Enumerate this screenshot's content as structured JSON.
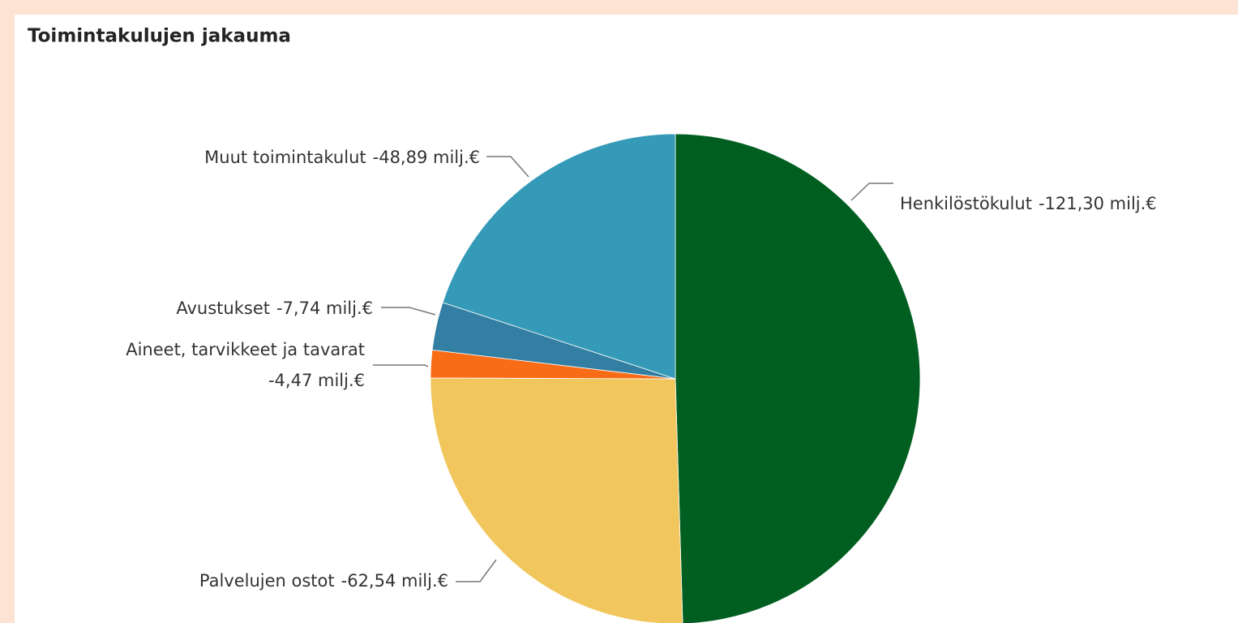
{
  "chart_data": {
    "type": "pie",
    "title": "Toimintakulujen jakauma",
    "categories": [
      "Henkilöstökulut",
      "Palvelujen ostot",
      "Aineet, tarvikkeet ja tavarat",
      "Avustukset",
      "Muut toimintakulut"
    ],
    "values": [
      -121.3,
      -62.54,
      -4.47,
      -7.74,
      -48.89
    ],
    "value_labels": [
      "-121,30 milj.€",
      "-62,54 milj.€",
      "-4,47 milj.€",
      "-7,74 milj.€",
      "-48,89 milj.€"
    ],
    "colors": [
      "#005f20",
      "#f1c75d",
      "#f86c16",
      "#337fa3",
      "#359ab8"
    ]
  }
}
